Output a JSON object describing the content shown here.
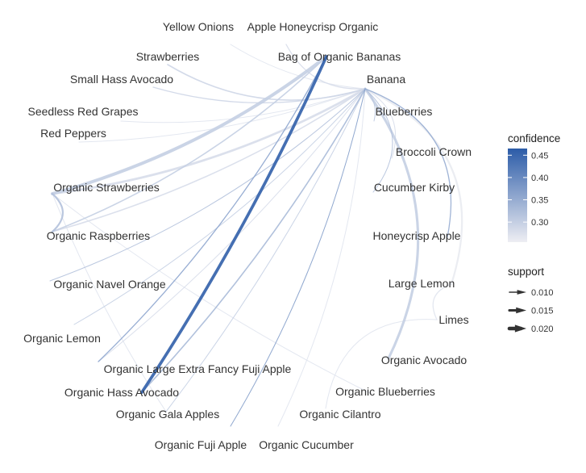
{
  "nodes": [
    {
      "id": "yellow_onions",
      "label": "Yellow Onions"
    },
    {
      "id": "apple_honeycrisp_organic",
      "label": "Apple Honeycrisp Organic"
    },
    {
      "id": "strawberries",
      "label": "Strawberries"
    },
    {
      "id": "bag_of_organic_bananas",
      "label": "Bag of Organic Bananas"
    },
    {
      "id": "small_hass_avocado",
      "label": "Small Hass Avocado"
    },
    {
      "id": "banana",
      "label": "Banana"
    },
    {
      "id": "seedless_red_grapes",
      "label": "Seedless Red Grapes"
    },
    {
      "id": "blueberries",
      "label": "Blueberries"
    },
    {
      "id": "red_peppers",
      "label": "Red Peppers"
    },
    {
      "id": "broccoli_crown",
      "label": "Broccoli Crown"
    },
    {
      "id": "organic_strawberries",
      "label": "Organic Strawberries"
    },
    {
      "id": "cucumber_kirby",
      "label": "Cucumber Kirby"
    },
    {
      "id": "organic_raspberries",
      "label": "Organic Raspberries"
    },
    {
      "id": "honeycrisp_apple",
      "label": "Honeycrisp Apple"
    },
    {
      "id": "organic_navel_orange",
      "label": "Organic Navel Orange"
    },
    {
      "id": "large_lemon",
      "label": "Large Lemon"
    },
    {
      "id": "limes",
      "label": "Limes"
    },
    {
      "id": "organic_lemon",
      "label": "Organic Lemon"
    },
    {
      "id": "organic_avocado",
      "label": "Organic Avocado"
    },
    {
      "id": "organic_large_extra_fancy_fuji_apple",
      "label": "Organic Large Extra Fancy Fuji Apple"
    },
    {
      "id": "organic_hass_avocado",
      "label": "Organic Hass Avocado"
    },
    {
      "id": "organic_blueberries",
      "label": "Organic Blueberries"
    },
    {
      "id": "organic_gala_apples",
      "label": "Organic Gala Apples"
    },
    {
      "id": "organic_cilantro",
      "label": "Organic Cilantro"
    },
    {
      "id": "organic_fuji_apple",
      "label": "Organic Fuji Apple"
    },
    {
      "id": "organic_cucumber",
      "label": "Organic Cucumber"
    }
  ],
  "edges": [
    {
      "from": "organic_strawberries",
      "to": "bag_of_organic_bananas",
      "confidence": 0.3,
      "support": 0.02
    },
    {
      "from": "organic_raspberries",
      "to": "bag_of_organic_bananas",
      "confidence": 0.3,
      "support": 0.012
    },
    {
      "from": "organic_hass_avocado",
      "to": "bag_of_organic_bananas",
      "confidence": 0.46,
      "support": 0.019
    },
    {
      "from": "organic_large_extra_fancy_fuji_apple",
      "to": "bag_of_organic_bananas",
      "confidence": 0.36,
      "support": 0.011
    },
    {
      "from": "organic_raspberries",
      "to": "organic_strawberries",
      "confidence": 0.32,
      "support": 0.014
    },
    {
      "from": "organic_strawberries",
      "to": "banana",
      "confidence": 0.28,
      "support": 0.016
    },
    {
      "from": "organic_raspberries",
      "to": "banana",
      "confidence": 0.28,
      "support": 0.012
    },
    {
      "from": "strawberries",
      "to": "banana",
      "confidence": 0.29,
      "support": 0.012
    },
    {
      "from": "small_hass_avocado",
      "to": "banana",
      "confidence": 0.29,
      "support": 0.011
    },
    {
      "from": "seedless_red_grapes",
      "to": "banana",
      "confidence": 0.27,
      "support": 0.01
    },
    {
      "from": "red_peppers",
      "to": "banana",
      "confidence": 0.27,
      "support": 0.01
    },
    {
      "from": "yellow_onions",
      "to": "banana",
      "confidence": 0.27,
      "support": 0.01
    },
    {
      "from": "apple_honeycrisp_organic",
      "to": "banana",
      "confidence": 0.28,
      "support": 0.011
    },
    {
      "from": "blueberries",
      "to": "banana",
      "confidence": 0.31,
      "support": 0.01
    },
    {
      "from": "broccoli_crown",
      "to": "banana",
      "confidence": 0.28,
      "support": 0.01
    },
    {
      "from": "cucumber_kirby",
      "to": "banana",
      "confidence": 0.32,
      "support": 0.01
    },
    {
      "from": "honeycrisp_apple",
      "to": "banana",
      "confidence": 0.35,
      "support": 0.011
    },
    {
      "from": "large_lemon",
      "to": "banana",
      "confidence": 0.26,
      "support": 0.014
    },
    {
      "from": "organic_avocado",
      "to": "banana",
      "confidence": 0.3,
      "support": 0.017
    },
    {
      "from": "organic_navel_orange",
      "to": "banana",
      "confidence": 0.32,
      "support": 0.01
    },
    {
      "from": "organic_lemon",
      "to": "banana",
      "confidence": 0.3,
      "support": 0.01
    },
    {
      "from": "organic_large_extra_fancy_fuji_apple",
      "to": "banana",
      "confidence": 0.28,
      "support": 0.01
    },
    {
      "from": "organic_hass_avocado",
      "to": "banana",
      "confidence": 0.33,
      "support": 0.012
    },
    {
      "from": "organic_gala_apples",
      "to": "banana",
      "confidence": 0.3,
      "support": 0.01
    },
    {
      "from": "organic_fuji_apple",
      "to": "banana",
      "confidence": 0.37,
      "support": 0.01
    },
    {
      "from": "organic_cucumber",
      "to": "banana",
      "confidence": 0.27,
      "support": 0.01
    },
    {
      "from": "organic_cilantro",
      "to": "limes",
      "confidence": 0.27,
      "support": 0.01
    },
    {
      "from": "organic_blueberries",
      "to": "organic_strawberries",
      "confidence": 0.27,
      "support": 0.01
    },
    {
      "from": "organic_gala_apples",
      "to": "organic_strawberries",
      "confidence": 0.27,
      "support": 0.01
    },
    {
      "from": "limes",
      "to": "large_lemon",
      "confidence": 0.27,
      "support": 0.011
    }
  ],
  "legend": {
    "confidence": {
      "title": "confidence",
      "ticks": [
        "0.45",
        "0.40",
        "0.35",
        "0.30"
      ],
      "tick_values": [
        0.45,
        0.4,
        0.35,
        0.3
      ],
      "range": [
        0.255,
        0.465
      ],
      "color_low": "#eeeef3",
      "color_high": "#2c5ca8"
    },
    "support": {
      "title": "support",
      "ticks": [
        "0.010",
        "0.015",
        "0.020"
      ],
      "tick_values": [
        0.01,
        0.015,
        0.02
      ]
    }
  }
}
